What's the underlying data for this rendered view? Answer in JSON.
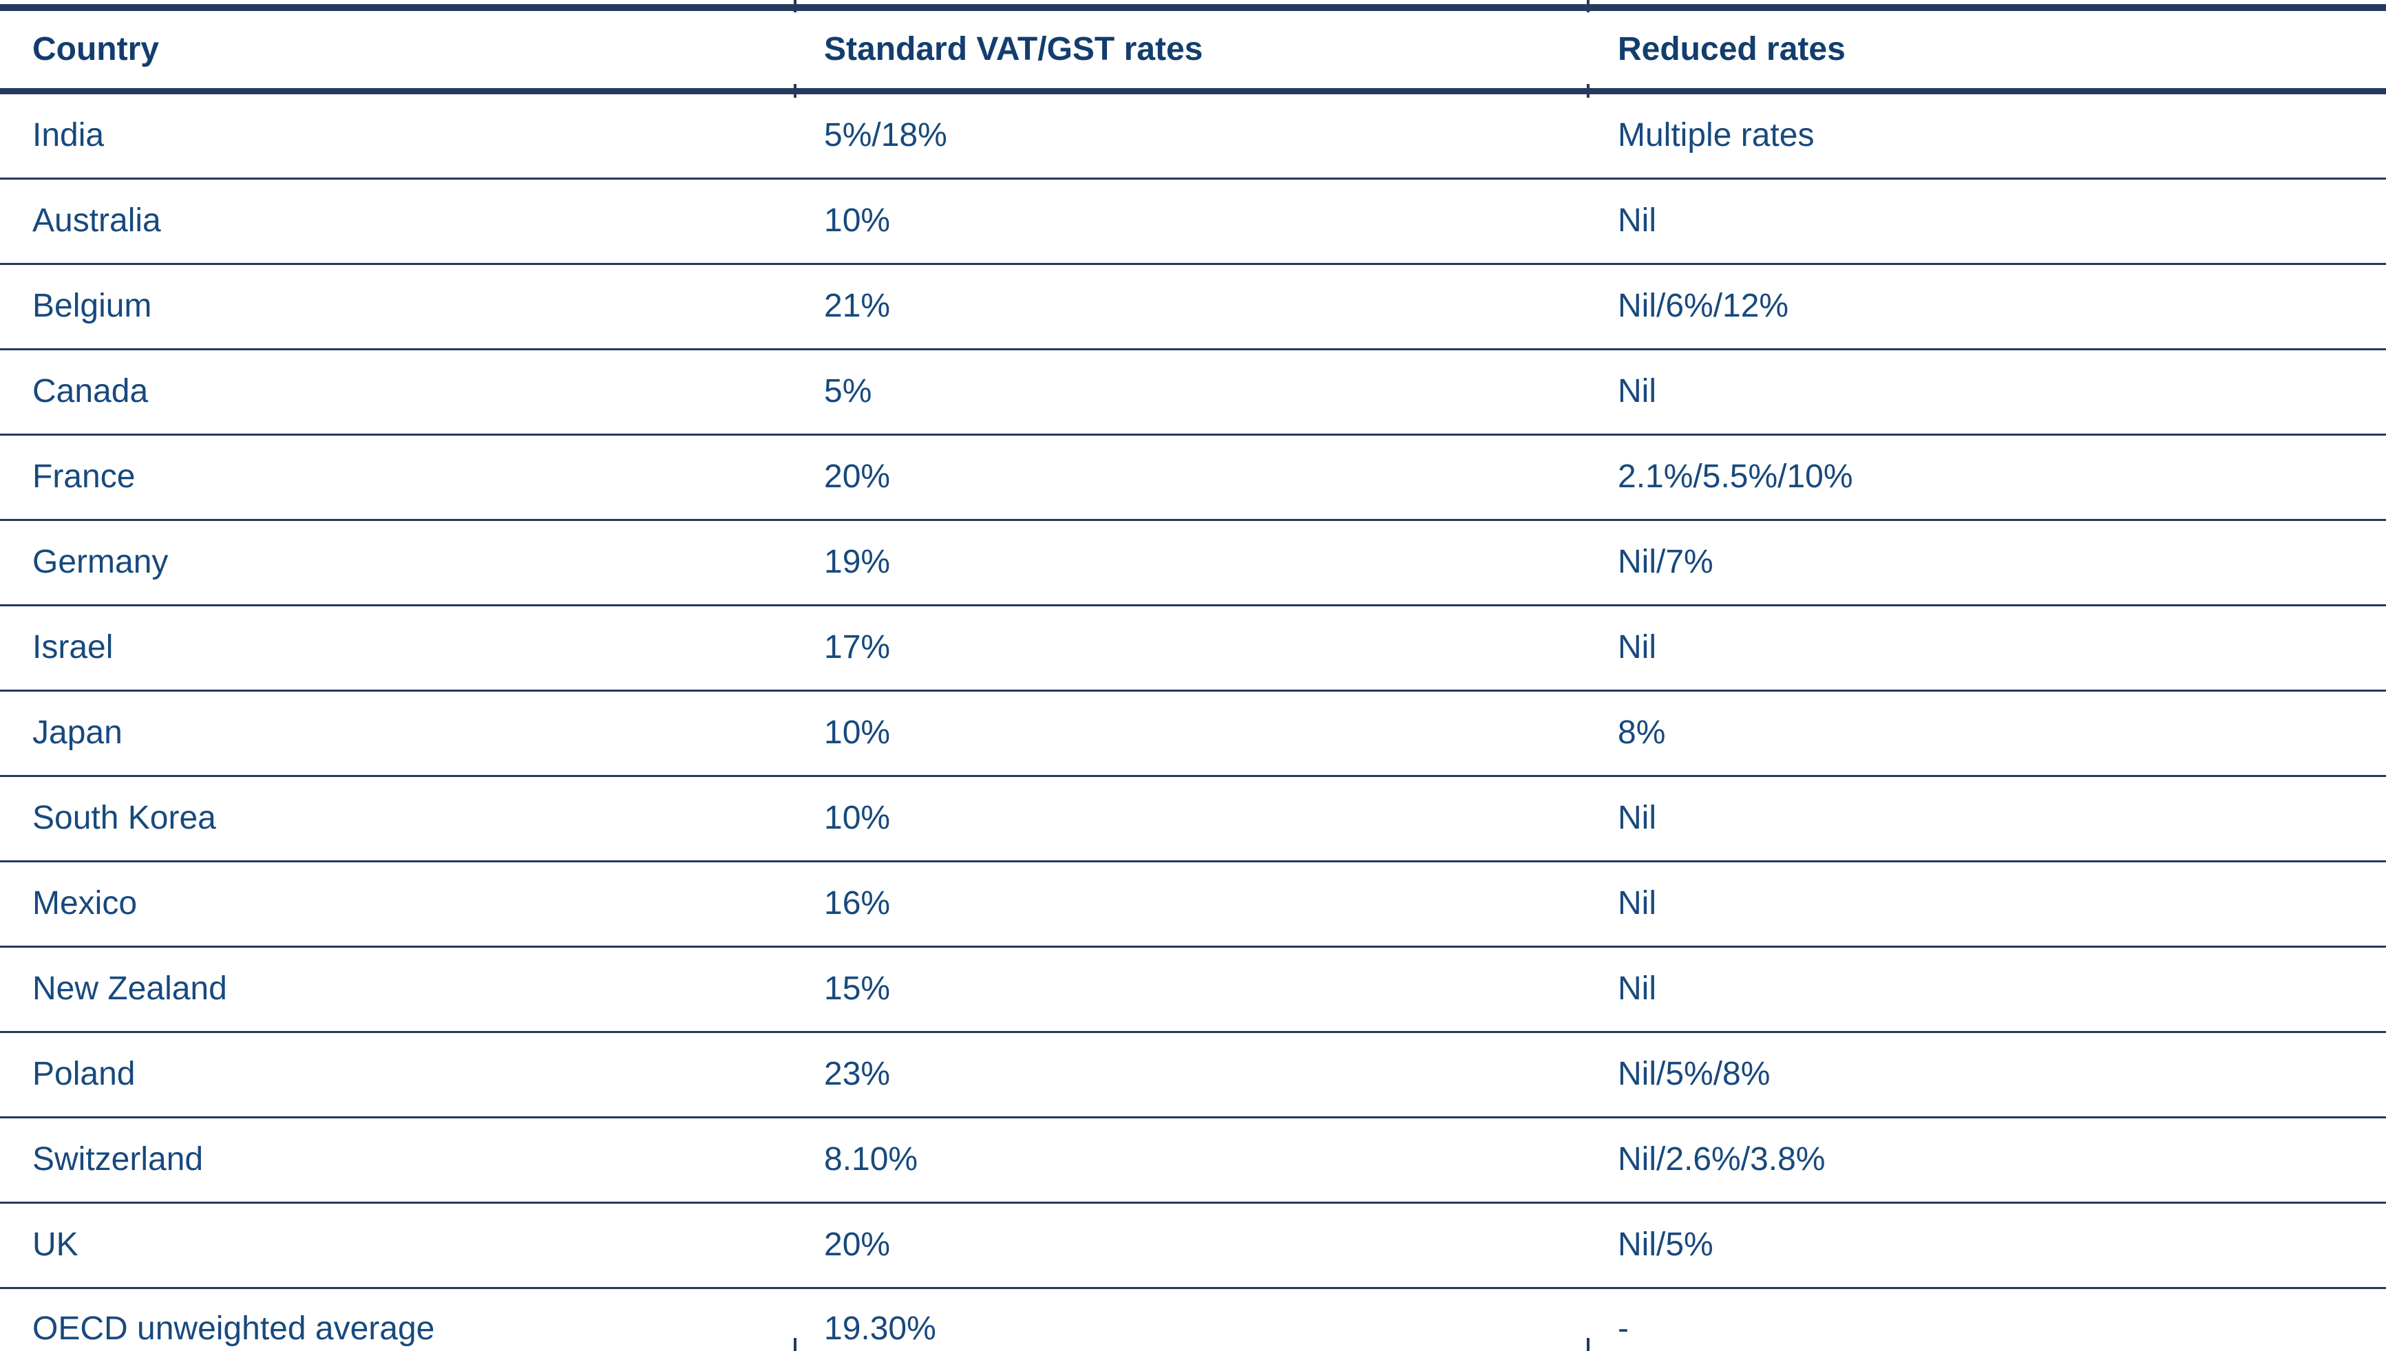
{
  "table": {
    "columns": [
      {
        "key": "country",
        "label": "Country"
      },
      {
        "key": "standard",
        "label": "Standard VAT/GST rates"
      },
      {
        "key": "reduced",
        "label": "Reduced rates"
      }
    ],
    "rows": [
      {
        "country": "India",
        "standard": "5%/18%",
        "reduced": "Multiple rates"
      },
      {
        "country": "Australia",
        "standard": "10%",
        "reduced": "Nil"
      },
      {
        "country": "Belgium",
        "standard": "21%",
        "reduced": "Nil/6%/12%"
      },
      {
        "country": "Canada",
        "standard": "5%",
        "reduced": "Nil"
      },
      {
        "country": "France",
        "standard": "20%",
        "reduced": "2.1%/5.5%/10%"
      },
      {
        "country": "Germany",
        "standard": "19%",
        "reduced": "Nil/7%"
      },
      {
        "country": "Israel",
        "standard": "17%",
        "reduced": "Nil"
      },
      {
        "country": "Japan",
        "standard": "10%",
        "reduced": "8%"
      },
      {
        "country": "South Korea",
        "standard": "10%",
        "reduced": "Nil"
      },
      {
        "country": "Mexico",
        "standard": "16%",
        "reduced": "Nil"
      },
      {
        "country": "New Zealand",
        "standard": "15%",
        "reduced": "Nil"
      },
      {
        "country": "Poland",
        "standard": "23%",
        "reduced": "Nil/5%/8%"
      },
      {
        "country": "Switzerland",
        "standard": "8.10%",
        "reduced": "Nil/2.6%/3.8%"
      },
      {
        "country": "UK",
        "standard": "20%",
        "reduced": "Nil/5%"
      },
      {
        "country": "OECD unweighted average",
        "standard": "19.30%",
        "reduced": "-"
      }
    ]
  },
  "colors": {
    "text": "#17497E",
    "header_text": "#123D6E",
    "rule": "#243A5E",
    "background": "#FFFFFF"
  }
}
